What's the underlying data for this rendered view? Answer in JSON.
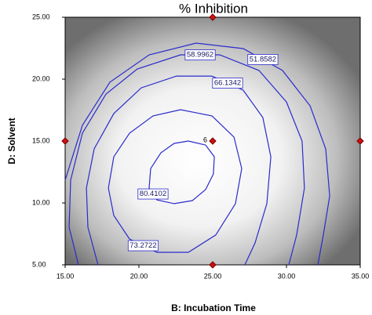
{
  "chart_data": {
    "type": "contour",
    "title": "% Inhibition",
    "x_label": "B: Incubation Time",
    "y_label": "D: Solvent",
    "xlim": [
      15,
      35
    ],
    "ylim": [
      5,
      25
    ],
    "xticks": [
      {
        "value": 15,
        "label": "15.00"
      },
      {
        "value": 20,
        "label": "20.00"
      },
      {
        "value": 25,
        "label": "25.00"
      },
      {
        "value": 30,
        "label": "30.00"
      },
      {
        "value": 35,
        "label": "35.00"
      }
    ],
    "yticks": [
      {
        "value": 5,
        "label": "5.00"
      },
      {
        "value": 10,
        "label": "10.00"
      },
      {
        "value": 15,
        "label": "15.00"
      },
      {
        "value": 20,
        "label": "20.00"
      },
      {
        "value": 25,
        "label": "25.00"
      }
    ],
    "line_color": "#2b2bcc",
    "point_color": "#d01010",
    "contours": [
      {
        "level": 51.8582,
        "x": [
          15,
          16.17,
          18.03,
          20.69,
          23.88,
          27.07,
          29.73,
          31.6,
          32.66,
          32.93,
          32.5,
          32.13
        ],
        "y": [
          11.84,
          16.27,
          19.75,
          21.96,
          22.91,
          22.47,
          20.7,
          17.85,
          14.37,
          10.57,
          7.41,
          5
        ]
      },
      {
        "level": 58.9962,
        "x": [
          15.9,
          15.27,
          15.37,
          16.17,
          17.77,
          19.89,
          22.82,
          25.48,
          28.14,
          30,
          31.06,
          31.22,
          30.69,
          30.16
        ],
        "y": [
          5,
          8.04,
          11.84,
          15.63,
          18.8,
          20.82,
          21.96,
          21.96,
          20.7,
          18.16,
          15,
          11.2,
          7.41,
          5
        ]
      },
      {
        "level": 66.1342,
        "x": [
          17.23,
          16.54,
          16.44,
          16.97,
          18.3,
          20.16,
          22.55,
          24.95,
          27.07,
          28.4,
          28.94,
          28.67,
          27.87,
          27.18
        ],
        "y": [
          5,
          8.04,
          11.2,
          14.37,
          17.22,
          19.3,
          20.25,
          20.25,
          19.11,
          16.9,
          13.73,
          9.94,
          6.77,
          5
        ]
      },
      {
        "level": 73.2722,
        "x": [
          22.82,
          24.95,
          26.44,
          26.97,
          26.54,
          25.21,
          23.35,
          21.22,
          19.36,
          18.3,
          17.93,
          18.3,
          19.36,
          20.96,
          22.82
        ],
        "y": [
          17.53,
          17.03,
          15.32,
          12.78,
          9.94,
          7.41,
          6.01,
          6.01,
          7.09,
          8.99,
          11.2,
          13.73,
          15.63,
          17.03,
          17.53
        ]
      },
      {
        "level": 80.4102,
        "x": [
          23.35,
          24.52,
          25.11,
          25.05,
          24.52,
          23.62,
          22.39,
          21.22,
          20.69,
          20.8,
          21.49,
          22.39,
          23.35
        ],
        "y": [
          15,
          14.68,
          13.73,
          12.34,
          11.08,
          10.19,
          9.94,
          10.25,
          11.2,
          12.78,
          14.05,
          14.81,
          15
        ]
      }
    ],
    "design_points": {
      "x": [
        25,
        15,
        25,
        35,
        25
      ],
      "y": [
        25,
        15,
        15,
        15,
        5
      ],
      "labels": [
        null,
        null,
        "6",
        null,
        null
      ]
    }
  }
}
